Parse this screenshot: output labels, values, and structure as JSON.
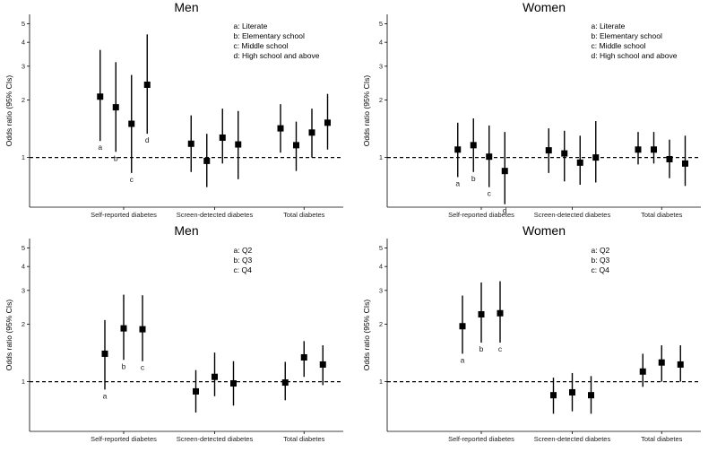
{
  "ylabel": "Odds ratio (95% CIs)",
  "chart_data": [
    {
      "type": "scatter",
      "title": "Men",
      "ylabel": "Odds ratio (95% CIs)",
      "yscale": "log",
      "ylim": [
        0.55,
        5.6
      ],
      "yticks": [
        1,
        2,
        3,
        4,
        5
      ],
      "reference_line": 1,
      "legend": [
        "a: Literate",
        "b: Elementary school",
        "c: Middle school",
        "d: High school and above"
      ],
      "groups": [
        {
          "name": "Self-reported diabetes",
          "points": [
            {
              "label": "a",
              "or": 2.08,
              "lo": 1.22,
              "hi": 3.65
            },
            {
              "label": "b",
              "or": 1.83,
              "lo": 1.07,
              "hi": 3.15
            },
            {
              "label": "c",
              "or": 1.5,
              "lo": 0.83,
              "hi": 2.7
            },
            {
              "label": "d",
              "or": 2.4,
              "lo": 1.33,
              "hi": 4.4
            }
          ]
        },
        {
          "name": "Screen-detected diabetes",
          "points": [
            {
              "or": 1.18,
              "lo": 0.84,
              "hi": 1.66
            },
            {
              "or": 0.96,
              "lo": 0.7,
              "hi": 1.33
            },
            {
              "or": 1.27,
              "lo": 0.93,
              "hi": 1.8
            },
            {
              "or": 1.17,
              "lo": 0.77,
              "hi": 1.75
            }
          ]
        },
        {
          "name": "Total diabetes",
          "points": [
            {
              "or": 1.42,
              "lo": 1.06,
              "hi": 1.9
            },
            {
              "or": 1.16,
              "lo": 0.85,
              "hi": 1.54
            },
            {
              "or": 1.35,
              "lo": 1.0,
              "hi": 1.8
            },
            {
              "or": 1.52,
              "lo": 1.1,
              "hi": 2.15
            }
          ]
        }
      ]
    },
    {
      "type": "scatter",
      "title": "Women",
      "ylabel": "Odds ratio (95% CIs)",
      "yscale": "log",
      "ylim": [
        0.55,
        5.6
      ],
      "yticks": [
        1,
        2,
        3,
        4,
        5
      ],
      "reference_line": 1,
      "legend": [
        "a: Literate",
        "b: Elementary school",
        "c: Middle school",
        "d: High school and above"
      ],
      "groups": [
        {
          "name": "Self-reported diabetes",
          "points": [
            {
              "label": "a",
              "or": 1.1,
              "lo": 0.79,
              "hi": 1.52
            },
            {
              "label": "b",
              "or": 1.16,
              "lo": 0.84,
              "hi": 1.6
            },
            {
              "label": "c",
              "or": 1.01,
              "lo": 0.7,
              "hi": 1.47
            },
            {
              "label": "d",
              "or": 0.85,
              "lo": 0.57,
              "hi": 1.36
            }
          ]
        },
        {
          "name": "Screen-detected diabetes",
          "points": [
            {
              "or": 1.09,
              "lo": 0.83,
              "hi": 1.42
            },
            {
              "or": 1.05,
              "lo": 0.75,
              "hi": 1.38
            },
            {
              "or": 0.94,
              "lo": 0.72,
              "hi": 1.3
            },
            {
              "or": 1.0,
              "lo": 0.74,
              "hi": 1.55
            }
          ]
        },
        {
          "name": "Total diabetes",
          "points": [
            {
              "or": 1.1,
              "lo": 0.92,
              "hi": 1.36
            },
            {
              "or": 1.1,
              "lo": 0.93,
              "hi": 1.36
            },
            {
              "or": 0.98,
              "lo": 0.78,
              "hi": 1.24
            },
            {
              "or": 0.93,
              "lo": 0.71,
              "hi": 1.3
            }
          ]
        }
      ]
    },
    {
      "type": "scatter",
      "title": "Men",
      "ylabel": "Odds ratio (95% CIs)",
      "yscale": "log",
      "ylim": [
        0.55,
        5.6
      ],
      "yticks": [
        1,
        2,
        3,
        4,
        5
      ],
      "reference_line": 1,
      "legend": [
        "a: Q2",
        "b: Q3",
        "c: Q4"
      ],
      "groups": [
        {
          "name": "Self-reported diabetes",
          "points": [
            {
              "label": "a",
              "or": 1.4,
              "lo": 0.91,
              "hi": 2.1
            },
            {
              "label": "b",
              "or": 1.9,
              "lo": 1.3,
              "hi": 2.85
            },
            {
              "label": "c",
              "or": 1.88,
              "lo": 1.28,
              "hi": 2.83
            }
          ]
        },
        {
          "name": "Screen-detected diabetes",
          "points": [
            {
              "or": 0.89,
              "lo": 0.69,
              "hi": 1.15
            },
            {
              "or": 1.06,
              "lo": 0.84,
              "hi": 1.42
            },
            {
              "or": 0.98,
              "lo": 0.75,
              "hi": 1.28
            }
          ]
        },
        {
          "name": "Total diabetes",
          "points": [
            {
              "or": 0.99,
              "lo": 0.8,
              "hi": 1.27
            },
            {
              "or": 1.34,
              "lo": 1.06,
              "hi": 1.63
            },
            {
              "or": 1.23,
              "lo": 0.96,
              "hi": 1.55
            }
          ]
        }
      ]
    },
    {
      "type": "scatter",
      "title": "Women",
      "ylabel": "Odds ratio (95% CIs)",
      "yscale": "log",
      "ylim": [
        0.55,
        5.6
      ],
      "yticks": [
        1,
        2,
        3,
        4,
        5
      ],
      "reference_line": 1,
      "legend": [
        "a: Q2",
        "b: Q3",
        "c: Q4"
      ],
      "groups": [
        {
          "name": "Self-reported diabetes",
          "points": [
            {
              "label": "a",
              "or": 1.95,
              "lo": 1.4,
              "hi": 2.82
            },
            {
              "label": "b",
              "or": 2.25,
              "lo": 1.6,
              "hi": 3.3
            },
            {
              "label": "c",
              "or": 2.28,
              "lo": 1.6,
              "hi": 3.35
            }
          ]
        },
        {
          "name": "Screen-detected diabetes",
          "points": [
            {
              "or": 0.85,
              "lo": 0.68,
              "hi": 1.05
            },
            {
              "or": 0.88,
              "lo": 0.7,
              "hi": 1.11
            },
            {
              "or": 0.85,
              "lo": 0.68,
              "hi": 1.07
            }
          ]
        },
        {
          "name": "Total diabetes",
          "points": [
            {
              "or": 1.13,
              "lo": 0.94,
              "hi": 1.4
            },
            {
              "or": 1.26,
              "lo": 1.0,
              "hi": 1.55
            },
            {
              "or": 1.23,
              "lo": 1.0,
              "hi": 1.55
            }
          ]
        }
      ]
    }
  ]
}
